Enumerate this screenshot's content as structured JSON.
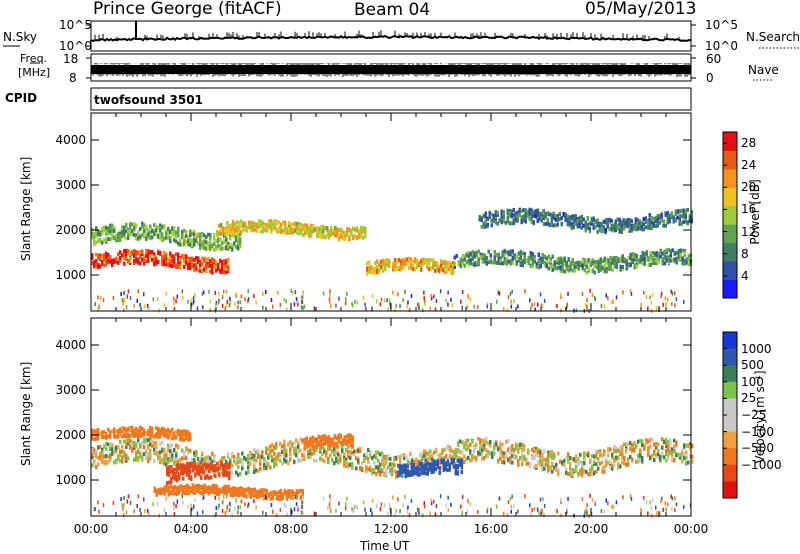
{
  "header": {
    "station": "Prince George (fitACF)",
    "beam": "Beam 04",
    "date": "05/May/2013"
  },
  "strip_labels": {
    "nsky": "N.Sky",
    "nsearch": "N.Search",
    "freq_line1": "Freq.",
    "freq_line2": "[MHz]",
    "nave": "Nave",
    "cpid": "CPID",
    "cpid_value": "twofsound 3501",
    "noise_tick_hi": "10^5",
    "noise_tick_lo": "10^0",
    "freq_tick_hi": "18",
    "freq_tick_lo": "8",
    "nave_tick_hi": "60",
    "nave_tick_lo": "0"
  },
  "colors": {
    "power_scale": [
      "#1a1aff",
      "#2f4fa8",
      "#3f7f5f",
      "#62a352",
      "#9ccd3a",
      "#f0c020",
      "#f4941c",
      "#e85a14",
      "#e61010"
    ],
    "velocity_scale": [
      "#1537d6",
      "#2f58b0",
      "#3a7f5a",
      "#7cc34a",
      "#c8c8c8",
      "#c8c8c8",
      "#f0a040",
      "#f07820",
      "#e84818",
      "#e01010"
    ]
  },
  "chart_data": [
    {
      "type": "heatmap",
      "title": "",
      "xlabel": "Time UT",
      "ylabel": "Slant Range [km]",
      "x_ticks": [
        "00:00",
        "04:00",
        "08:00",
        "12:00",
        "16:00",
        "20:00",
        "00:00"
      ],
      "y_ticks": [
        "1000",
        "2000",
        "3000",
        "4000"
      ],
      "ylim": [
        200,
        4600
      ],
      "xlim_hours": [
        0,
        24
      ],
      "colorbar": {
        "label": "Power [dB]",
        "ticks": [
          "4",
          "8",
          "12",
          "16",
          "20",
          "24",
          "28"
        ],
        "range": [
          0,
          30
        ]
      },
      "regions": [
        {
          "t_start": 0.0,
          "t_end": 5.5,
          "range_center": 1300,
          "range_width": 300,
          "value": 26
        },
        {
          "t_start": 0.0,
          "t_end": 6.0,
          "range_center": 1850,
          "range_width": 350,
          "value": 12
        },
        {
          "t_start": 5.0,
          "t_end": 11.0,
          "range_center": 2000,
          "range_width": 250,
          "value": 18
        },
        {
          "t_start": 11.0,
          "t_end": 14.5,
          "range_center": 1150,
          "range_width": 250,
          "value": 20
        },
        {
          "t_start": 14.5,
          "t_end": 24.0,
          "range_center": 1300,
          "range_width": 300,
          "value": 10
        },
        {
          "t_start": 15.5,
          "t_end": 24.0,
          "range_center": 2200,
          "range_width": 300,
          "value": 8
        }
      ]
    },
    {
      "type": "heatmap",
      "title": "",
      "xlabel": "Time UT",
      "ylabel": "Slant Range [km]",
      "x_ticks": [
        "00:00",
        "04:00",
        "08:00",
        "12:00",
        "16:00",
        "20:00",
        "00:00"
      ],
      "y_ticks": [
        "1000",
        "2000",
        "3000",
        "4000"
      ],
      "ylim": [
        200,
        4600
      ],
      "xlim_hours": [
        0,
        24
      ],
      "colorbar": {
        "label": "Velocity [m s⁻¹]",
        "ticks": [
          "1000",
          "500",
          "100",
          "25",
          "−25",
          "−100",
          "−500",
          "−1000"
        ]
      },
      "regions": [
        {
          "t_start": 0.0,
          "t_end": 24.0,
          "range_center": 1500,
          "range_width": 500,
          "value": 0
        },
        {
          "t_start": 0.0,
          "t_end": 4.0,
          "range_center": 2000,
          "range_width": 200,
          "value": -200
        },
        {
          "t_start": 2.5,
          "t_end": 8.5,
          "range_center": 730,
          "range_width": 180,
          "value": -300
        },
        {
          "t_start": 3.0,
          "t_end": 5.5,
          "range_center": 1100,
          "range_width": 350,
          "value": -800
        },
        {
          "t_start": 8.5,
          "t_end": 10.5,
          "range_center": 1800,
          "range_width": 250,
          "value": -300
        },
        {
          "t_start": 12.3,
          "t_end": 14.8,
          "range_center": 1200,
          "range_width": 300,
          "value": 800
        }
      ]
    }
  ]
}
